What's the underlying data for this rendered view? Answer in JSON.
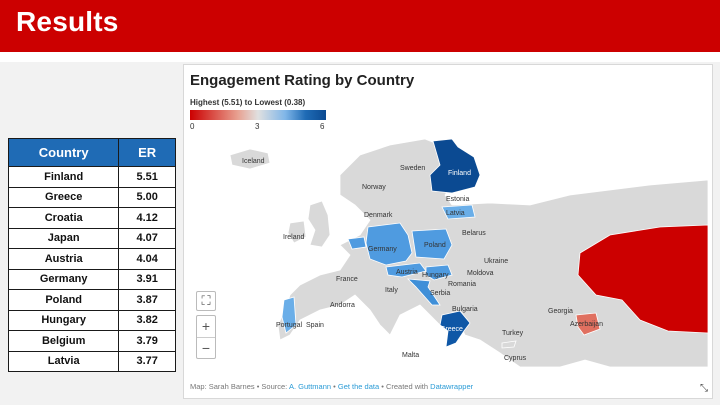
{
  "header": {
    "title": "Results"
  },
  "table": {
    "columns": [
      "Country",
      "ER"
    ],
    "rows": [
      {
        "country": "Finland",
        "er": "5.51"
      },
      {
        "country": "Greece",
        "er": "5.00"
      },
      {
        "country": "Croatia",
        "er": "4.12"
      },
      {
        "country": "Japan",
        "er": "4.07"
      },
      {
        "country": "Austria",
        "er": "4.04"
      },
      {
        "country": "Germany",
        "er": "3.91"
      },
      {
        "country": "Poland",
        "er": "3.87"
      },
      {
        "country": "Hungary",
        "er": "3.82"
      },
      {
        "country": "Belgium",
        "er": "3.79"
      },
      {
        "country": "Latvia",
        "er": "3.77"
      }
    ]
  },
  "map": {
    "title": "Engagement Rating by Country",
    "legend": {
      "label": "Highest (5.51) to Lowest (0.38)",
      "ticks": [
        "0",
        "3",
        "6"
      ],
      "low_color": "#cc0000",
      "high_color": "#0b4a92"
    },
    "labels": {
      "iceland": "Iceland",
      "sweden": "Sweden",
      "finland": "Finland",
      "norway": "Norway",
      "estonia": "Estonia",
      "latvia": "Latvia",
      "denmark": "Denmark",
      "belarus": "Belarus",
      "ireland": "Ireland",
      "germany": "Germany",
      "poland": "Poland",
      "ukraine": "Ukraine",
      "france": "France",
      "austria": "Austria",
      "hungary": "Hungary",
      "moldova": "Moldova",
      "romania": "Romania",
      "italy": "Italy",
      "serbia": "Serbia",
      "andorra": "Andorra",
      "bulgaria": "Bulgaria",
      "georgia": "Georgia",
      "portugal": "Portugal",
      "spain": "Spain",
      "greece": "Greece",
      "turkey": "Turkey",
      "azerbaijan": "Azerbaijan",
      "malta": "Malta",
      "cyprus": "Cyprus"
    },
    "controls": {
      "fullscreen_icon": "fullscreen-icon",
      "zoom_in": "+",
      "zoom_out": "−"
    },
    "footer": {
      "prefix": "Map: Sarah Barnes • Source:",
      "source_link": "A. Guttmann",
      "sep1": "•",
      "data_link": "Get the data",
      "created": "• Created with",
      "datawrapper_link": "Datawrapper"
    }
  }
}
